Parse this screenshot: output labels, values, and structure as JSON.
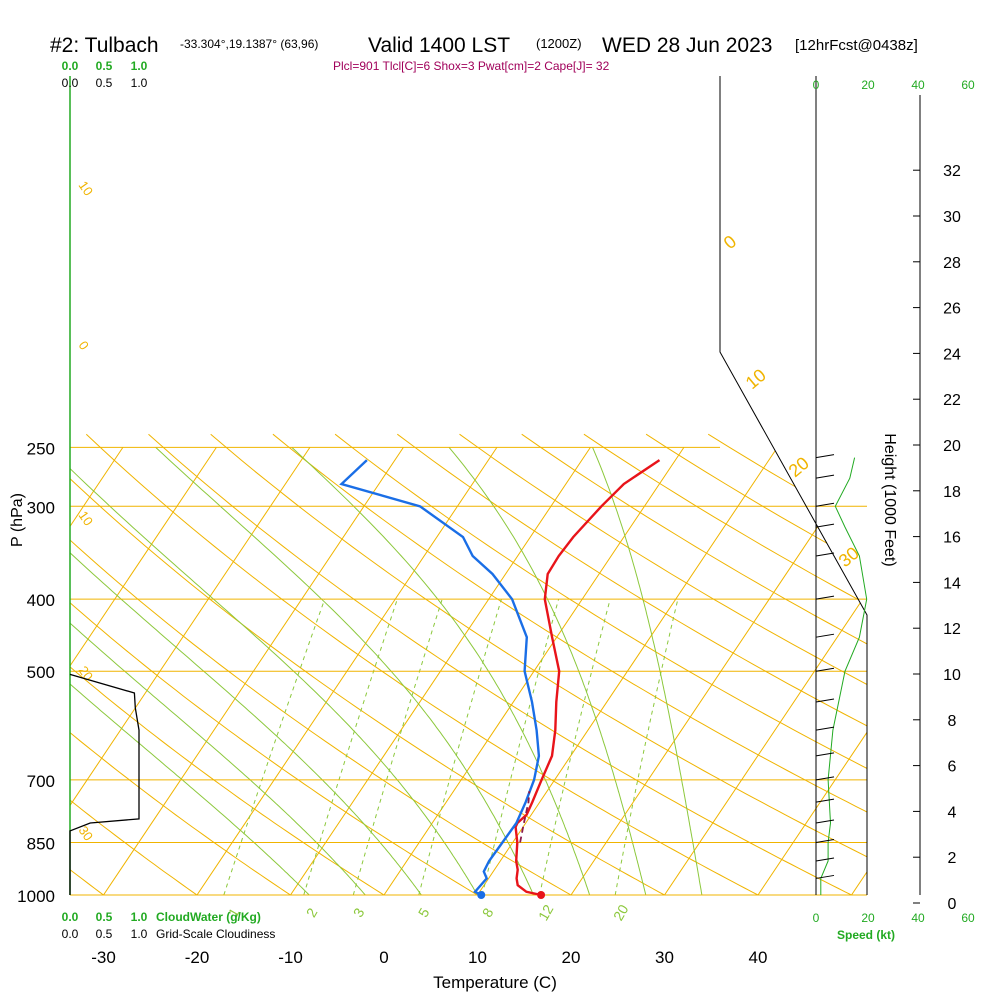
{
  "header": {
    "station": "#2: Tulbach",
    "coords": "-33.304°,19.1387° (63,96)",
    "valid": "Valid 1400 LST",
    "utc": "(1200Z)",
    "date": "WED 28 Jun 2023",
    "forecast": "[12hrFcst@0438z]",
    "params": "Plcl=901 Tlcl[C]=6 Shox=3 Pwat[cm]=2 Cape[J]= 32"
  },
  "colors": {
    "temperature": "#e8141a",
    "dewpoint": "#1a6ee6",
    "isobar": "#f0b400",
    "dry_adiabat": "#f0b400",
    "moist_adiabat": "#8cc83c",
    "mixing_ratio": "#8cc83c",
    "parcel": "#8b1a4a",
    "params_text": "#a0005a",
    "green_text": "#22aa22"
  },
  "chart_data": {
    "type": "skew-t",
    "xlabel": "Temperature (C)",
    "ylabel": "P (hPa)",
    "y2label": "Height (1000 Feet)",
    "x_ticks": [
      -30,
      -20,
      -10,
      0,
      10,
      20,
      30,
      40
    ],
    "p_ticks": [
      250,
      300,
      400,
      500,
      700,
      850,
      1000
    ],
    "height_ticks": [
      0,
      2,
      4,
      6,
      8,
      10,
      12,
      14,
      16,
      18,
      20,
      22,
      24,
      26,
      28,
      30,
      32
    ],
    "isotherm_labels": [
      "10",
      "0",
      "10",
      "20",
      "30"
    ],
    "dry_adiabat_labels": [
      "10",
      "0",
      "10",
      "20",
      "30"
    ],
    "mixing_ratio_labels": [
      "1",
      "2",
      "3",
      "5",
      "8",
      "12",
      "20"
    ],
    "cloud_water": {
      "label": "CloudWater (g/Kg)",
      "ticks": [
        "0.0",
        "0.5",
        "1.0"
      ]
    },
    "cloudiness": {
      "label": "Grid-Scale Cloudiness",
      "ticks": [
        "0.0",
        "0.5",
        "1.0"
      ]
    },
    "speed": {
      "label": "Speed (kt)",
      "ticks": [
        "0",
        "20",
        "40",
        "60"
      ]
    },
    "temperature_profile": [
      {
        "p": 1000,
        "t": 16.8
      },
      {
        "p": 990,
        "t": 15.0
      },
      {
        "p": 970,
        "t": 13.6
      },
      {
        "p": 950,
        "t": 13.0
      },
      {
        "p": 925,
        "t": 12.5
      },
      {
        "p": 900,
        "t": 11.7
      },
      {
        "p": 850,
        "t": 10.5
      },
      {
        "p": 810,
        "t": 9.2
      },
      {
        "p": 800,
        "t": 9.1
      },
      {
        "p": 780,
        "t": 9.5
      },
      {
        "p": 750,
        "t": 9.2
      },
      {
        "p": 700,
        "t": 8.6
      },
      {
        "p": 650,
        "t": 8.0
      },
      {
        "p": 600,
        "t": 6.5
      },
      {
        "p": 550,
        "t": 4.6
      },
      {
        "p": 500,
        "t": 2.7
      },
      {
        "p": 450,
        "t": -0.5
      },
      {
        "p": 400,
        "t": -4.0
      },
      {
        "p": 370,
        "t": -5.5
      },
      {
        "p": 350,
        "t": -5.6
      },
      {
        "p": 330,
        "t": -5.4
      },
      {
        "p": 300,
        "t": -4.6
      },
      {
        "p": 280,
        "t": -3.8
      },
      {
        "p": 260,
        "t": -1.7
      }
    ],
    "dewpoint_profile": [
      {
        "p": 1000,
        "t": 10.4
      },
      {
        "p": 990,
        "t": 9.5
      },
      {
        "p": 950,
        "t": 9.8
      },
      {
        "p": 930,
        "t": 9.0
      },
      {
        "p": 900,
        "t": 8.8
      },
      {
        "p": 850,
        "t": 8.9
      },
      {
        "p": 800,
        "t": 9.0
      },
      {
        "p": 750,
        "t": 8.5
      },
      {
        "p": 700,
        "t": 7.8
      },
      {
        "p": 650,
        "t": 6.6
      },
      {
        "p": 600,
        "t": 4.5
      },
      {
        "p": 550,
        "t": 2.0
      },
      {
        "p": 500,
        "t": -1.0
      },
      {
        "p": 450,
        "t": -3.2
      },
      {
        "p": 400,
        "t": -7.5
      },
      {
        "p": 370,
        "t": -11.4
      },
      {
        "p": 350,
        "t": -14.8
      },
      {
        "p": 330,
        "t": -17.2
      },
      {
        "p": 300,
        "t": -24.0
      },
      {
        "p": 280,
        "t": -34.0
      },
      {
        "p": 260,
        "t": -33.0
      }
    ],
    "parcel_profile": [
      {
        "p": 850,
        "t": 10.8
      },
      {
        "p": 800,
        "t": 9.8
      },
      {
        "p": 750,
        "t": 8.8
      },
      {
        "p": 725,
        "t": 8.1
      }
    ],
    "cloudiness_profile": [
      {
        "p": 1000,
        "v": 0.0
      },
      {
        "p": 820,
        "v": 0.0
      },
      {
        "p": 800,
        "v": 0.22
      },
      {
        "p": 790,
        "v": 0.75
      },
      {
        "p": 600,
        "v": 0.75
      },
      {
        "p": 560,
        "v": 0.71
      },
      {
        "p": 535,
        "v": 0.7
      },
      {
        "p": 505,
        "v": 0.0
      }
    ],
    "wind_speed_profile": [
      {
        "p": 1000,
        "v": 2
      },
      {
        "p": 950,
        "v": 2
      },
      {
        "p": 900,
        "v": 5
      },
      {
        "p": 850,
        "v": 5
      },
      {
        "p": 800,
        "v": 6
      },
      {
        "p": 700,
        "v": 5
      },
      {
        "p": 600,
        "v": 7
      },
      {
        "p": 500,
        "v": 12
      },
      {
        "p": 450,
        "v": 18
      },
      {
        "p": 400,
        "v": 21
      },
      {
        "p": 350,
        "v": 18
      },
      {
        "p": 320,
        "v": 12
      },
      {
        "p": 300,
        "v": 8
      },
      {
        "p": 275,
        "v": 14
      },
      {
        "p": 258,
        "v": 16
      }
    ]
  }
}
